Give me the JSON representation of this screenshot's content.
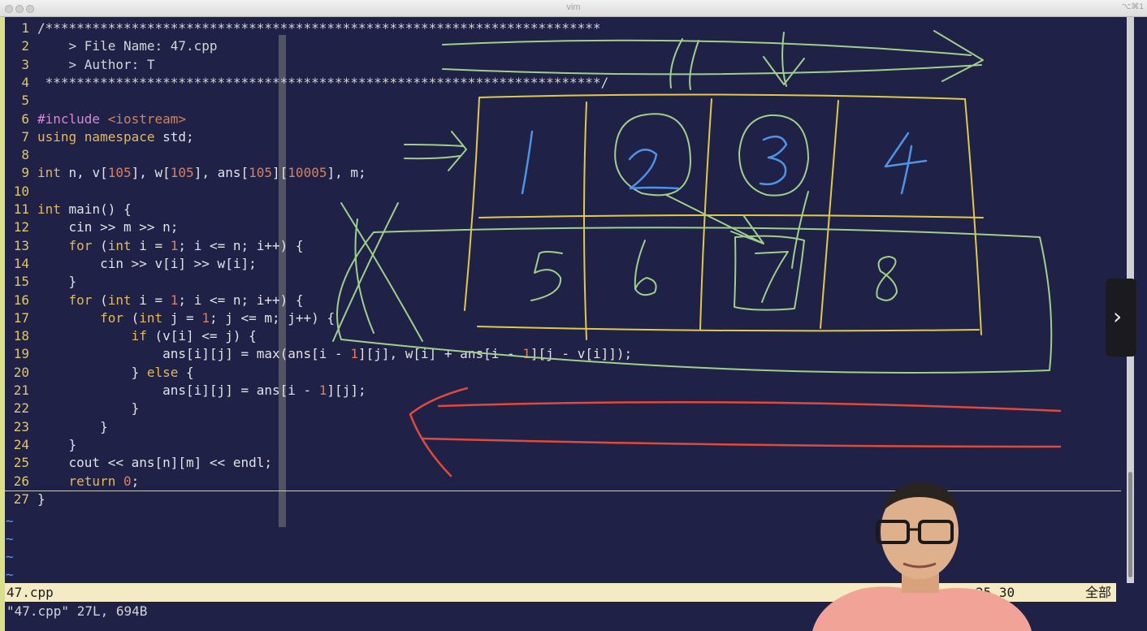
{
  "window": {
    "title": "vim",
    "shortcut": "⌥⌘1"
  },
  "editor": {
    "lines": [
      {
        "no": "1",
        "segs": [
          {
            "t": "/***********************************************************************",
            "c": "c-comment"
          }
        ]
      },
      {
        "no": "2",
        "segs": [
          {
            "t": "    > File Name: 47.cpp",
            "c": "c-comment"
          }
        ]
      },
      {
        "no": "3",
        "segs": [
          {
            "t": "    > Author: T",
            "c": "c-comment"
          }
        ]
      },
      {
        "no": "4",
        "segs": [
          {
            "t": " ***********************************************************************/",
            "c": "c-comment"
          }
        ]
      },
      {
        "no": "5",
        "segs": []
      },
      {
        "no": "6",
        "segs": [
          {
            "t": "#include ",
            "c": "c-pre"
          },
          {
            "t": "<iostream>",
            "c": "c-inc"
          }
        ]
      },
      {
        "no": "7",
        "segs": [
          {
            "t": "using namespace",
            "c": "c-kw"
          },
          {
            "t": " std;",
            "c": "c-plain"
          }
        ]
      },
      {
        "no": "8",
        "segs": []
      },
      {
        "no": "9",
        "segs": [
          {
            "t": "int",
            "c": "c-kw"
          },
          {
            "t": " n, v[",
            "c": "c-plain"
          },
          {
            "t": "105",
            "c": "c-num"
          },
          {
            "t": "], w[",
            "c": "c-plain"
          },
          {
            "t": "105",
            "c": "c-num"
          },
          {
            "t": "], ans[",
            "c": "c-plain"
          },
          {
            "t": "105",
            "c": "c-num"
          },
          {
            "t": "][",
            "c": "c-plain"
          },
          {
            "t": "10005",
            "c": "c-num"
          },
          {
            "t": "], m;",
            "c": "c-plain"
          }
        ]
      },
      {
        "no": "10",
        "segs": []
      },
      {
        "no": "11",
        "segs": [
          {
            "t": "int",
            "c": "c-kw"
          },
          {
            "t": " main() {",
            "c": "c-plain"
          }
        ]
      },
      {
        "no": "12",
        "segs": [
          {
            "t": "    cin >> m >> n;",
            "c": "c-plain"
          }
        ]
      },
      {
        "no": "13",
        "segs": [
          {
            "t": "    ",
            "c": "c-plain"
          },
          {
            "t": "for",
            "c": "c-kw"
          },
          {
            "t": " (",
            "c": "c-plain"
          },
          {
            "t": "int",
            "c": "c-kw"
          },
          {
            "t": " i = ",
            "c": "c-plain"
          },
          {
            "t": "1",
            "c": "c-num"
          },
          {
            "t": "; i <= n; i++) {",
            "c": "c-plain"
          }
        ]
      },
      {
        "no": "14",
        "segs": [
          {
            "t": "        cin >> v[i] >> w[i];",
            "c": "c-plain"
          }
        ]
      },
      {
        "no": "15",
        "segs": [
          {
            "t": "    }",
            "c": "c-plain"
          }
        ]
      },
      {
        "no": "16",
        "segs": [
          {
            "t": "    ",
            "c": "c-plain"
          },
          {
            "t": "for",
            "c": "c-kw"
          },
          {
            "t": " (",
            "c": "c-plain"
          },
          {
            "t": "int",
            "c": "c-kw"
          },
          {
            "t": " i = ",
            "c": "c-plain"
          },
          {
            "t": "1",
            "c": "c-num"
          },
          {
            "t": "; i <= n; i++) {",
            "c": "c-plain"
          }
        ]
      },
      {
        "no": "17",
        "segs": [
          {
            "t": "        ",
            "c": "c-plain"
          },
          {
            "t": "for",
            "c": "c-kw"
          },
          {
            "t": " (",
            "c": "c-plain"
          },
          {
            "t": "int",
            "c": "c-kw"
          },
          {
            "t": " j = ",
            "c": "c-plain"
          },
          {
            "t": "1",
            "c": "c-num"
          },
          {
            "t": "; j <= m; j++) {",
            "c": "c-plain"
          }
        ]
      },
      {
        "no": "18",
        "segs": [
          {
            "t": "            ",
            "c": "c-plain"
          },
          {
            "t": "if",
            "c": "c-kw"
          },
          {
            "t": " (v[i] <= j) {",
            "c": "c-plain"
          }
        ]
      },
      {
        "no": "19",
        "segs": [
          {
            "t": "                ans[i][j] = max(ans[i - ",
            "c": "c-plain"
          },
          {
            "t": "1",
            "c": "c-num"
          },
          {
            "t": "][j], w[i] + ans[i - ",
            "c": "c-plain"
          },
          {
            "t": "1",
            "c": "c-num"
          },
          {
            "t": "][j - v[i]]);",
            "c": "c-plain"
          }
        ]
      },
      {
        "no": "20",
        "segs": [
          {
            "t": "            } ",
            "c": "c-plain"
          },
          {
            "t": "else",
            "c": "c-kw"
          },
          {
            "t": " {",
            "c": "c-plain"
          }
        ]
      },
      {
        "no": "21",
        "segs": [
          {
            "t": "                ans[i][j] = ans[i - ",
            "c": "c-plain"
          },
          {
            "t": "1",
            "c": "c-num"
          },
          {
            "t": "][j];",
            "c": "c-plain"
          }
        ]
      },
      {
        "no": "22",
        "segs": [
          {
            "t": "            }",
            "c": "c-plain"
          }
        ]
      },
      {
        "no": "23",
        "segs": [
          {
            "t": "        }",
            "c": "c-plain"
          }
        ]
      },
      {
        "no": "24",
        "segs": [
          {
            "t": "    }",
            "c": "c-plain"
          }
        ]
      },
      {
        "no": "25",
        "segs": [
          {
            "t": "    cout << ans[n][m] << endl;",
            "c": "c-plain"
          }
        ]
      },
      {
        "no": "26",
        "segs": [
          {
            "t": "    ",
            "c": "c-plain"
          },
          {
            "t": "return",
            "c": "c-kw"
          },
          {
            "t": " ",
            "c": "c-plain"
          },
          {
            "t": "0",
            "c": "c-num"
          },
          {
            "t": ";",
            "c": "c-plain"
          }
        ]
      },
      {
        "no": "27",
        "segs": [
          {
            "t": "}",
            "c": "c-plain"
          }
        ]
      }
    ],
    "tilde": "~"
  },
  "statusline": {
    "file": "47.cpp",
    "position": "25,30",
    "percent": "全部"
  },
  "cmdline": {
    "text": "\"47.cpp\" 27L, 694B"
  },
  "overlay": {
    "next_button": "›",
    "drawing_digits": [
      "1",
      "2",
      "3",
      "4",
      "5",
      "6",
      "7",
      "8"
    ]
  },
  "colors": {
    "background": "#1f2147",
    "line_number": "#e0c668",
    "keyword": "#e5b955",
    "number": "#e07d5c",
    "statusline_bg": "#f4ebc4"
  }
}
